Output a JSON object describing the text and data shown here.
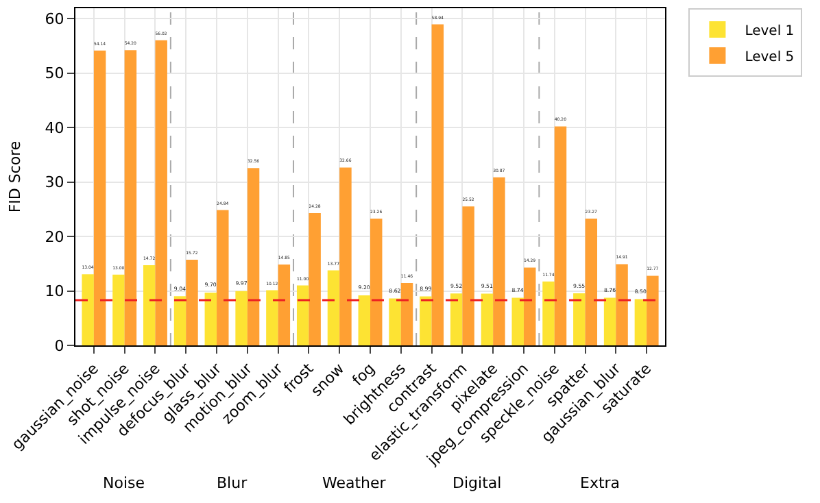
{
  "chart_data": {
    "type": "bar",
    "ylabel": "FID Score",
    "categories": [
      "gaussian_noise",
      "shot_noise",
      "impulse_noise",
      "defocus_blur",
      "glass_blur",
      "motion_blur",
      "zoom_blur",
      "frost",
      "snow",
      "fog",
      "brightness",
      "contrast",
      "elastic_transform",
      "pixelate",
      "jpeg_compression",
      "speckle_noise",
      "spatter",
      "gaussian_blur",
      "saturate"
    ],
    "series": [
      {
        "name": "Level 1",
        "color": "#fde333",
        "values": [
          13.04,
          13.0,
          14.72,
          9.04,
          9.7,
          9.97,
          10.12,
          11.0,
          13.77,
          9.2,
          8.62,
          8.99,
          9.52,
          9.51,
          8.74,
          11.74,
          9.55,
          8.76,
          8.5
        ],
        "value_labels": [
          "13.04",
          "13.00",
          "14.72",
          "9.04",
          "9.70",
          "9.97",
          "10.12",
          "11.00",
          "13.77",
          "9.20",
          "8.62",
          "8.99",
          "9.52",
          "9.51",
          "8.74",
          "11.74",
          "9.55",
          "8.76",
          "8.50"
        ]
      },
      {
        "name": "Level 5",
        "color": "#ffa033",
        "values": [
          54.14,
          54.2,
          56.02,
          15.72,
          24.84,
          32.56,
          14.85,
          24.28,
          32.66,
          23.26,
          11.46,
          58.94,
          25.52,
          30.87,
          14.29,
          40.2,
          23.27,
          14.91,
          12.77
        ],
        "value_labels": [
          "54.14",
          "54.20",
          "56.02",
          "15.72",
          "24.84",
          "32.56",
          "14.85",
          "24.28",
          "32.66",
          "23.26",
          "11.46",
          "58.94",
          "25.52",
          "30.87",
          "14.29",
          "40.20",
          "23.27",
          "14.91",
          "12.77"
        ]
      }
    ],
    "ylim": [
      0,
      61.9
    ],
    "yticks": [
      0,
      10,
      20,
      30,
      40,
      50,
      60
    ],
    "grid": true,
    "legend": "top right",
    "ref_lines": [
      {
        "axis": "y",
        "value": 8.3,
        "color": "#ee2222",
        "line_style": "dashed"
      }
    ],
    "annotations": [
      "Noise",
      "Blur",
      "Weather",
      "Digital",
      "Extra"
    ]
  }
}
